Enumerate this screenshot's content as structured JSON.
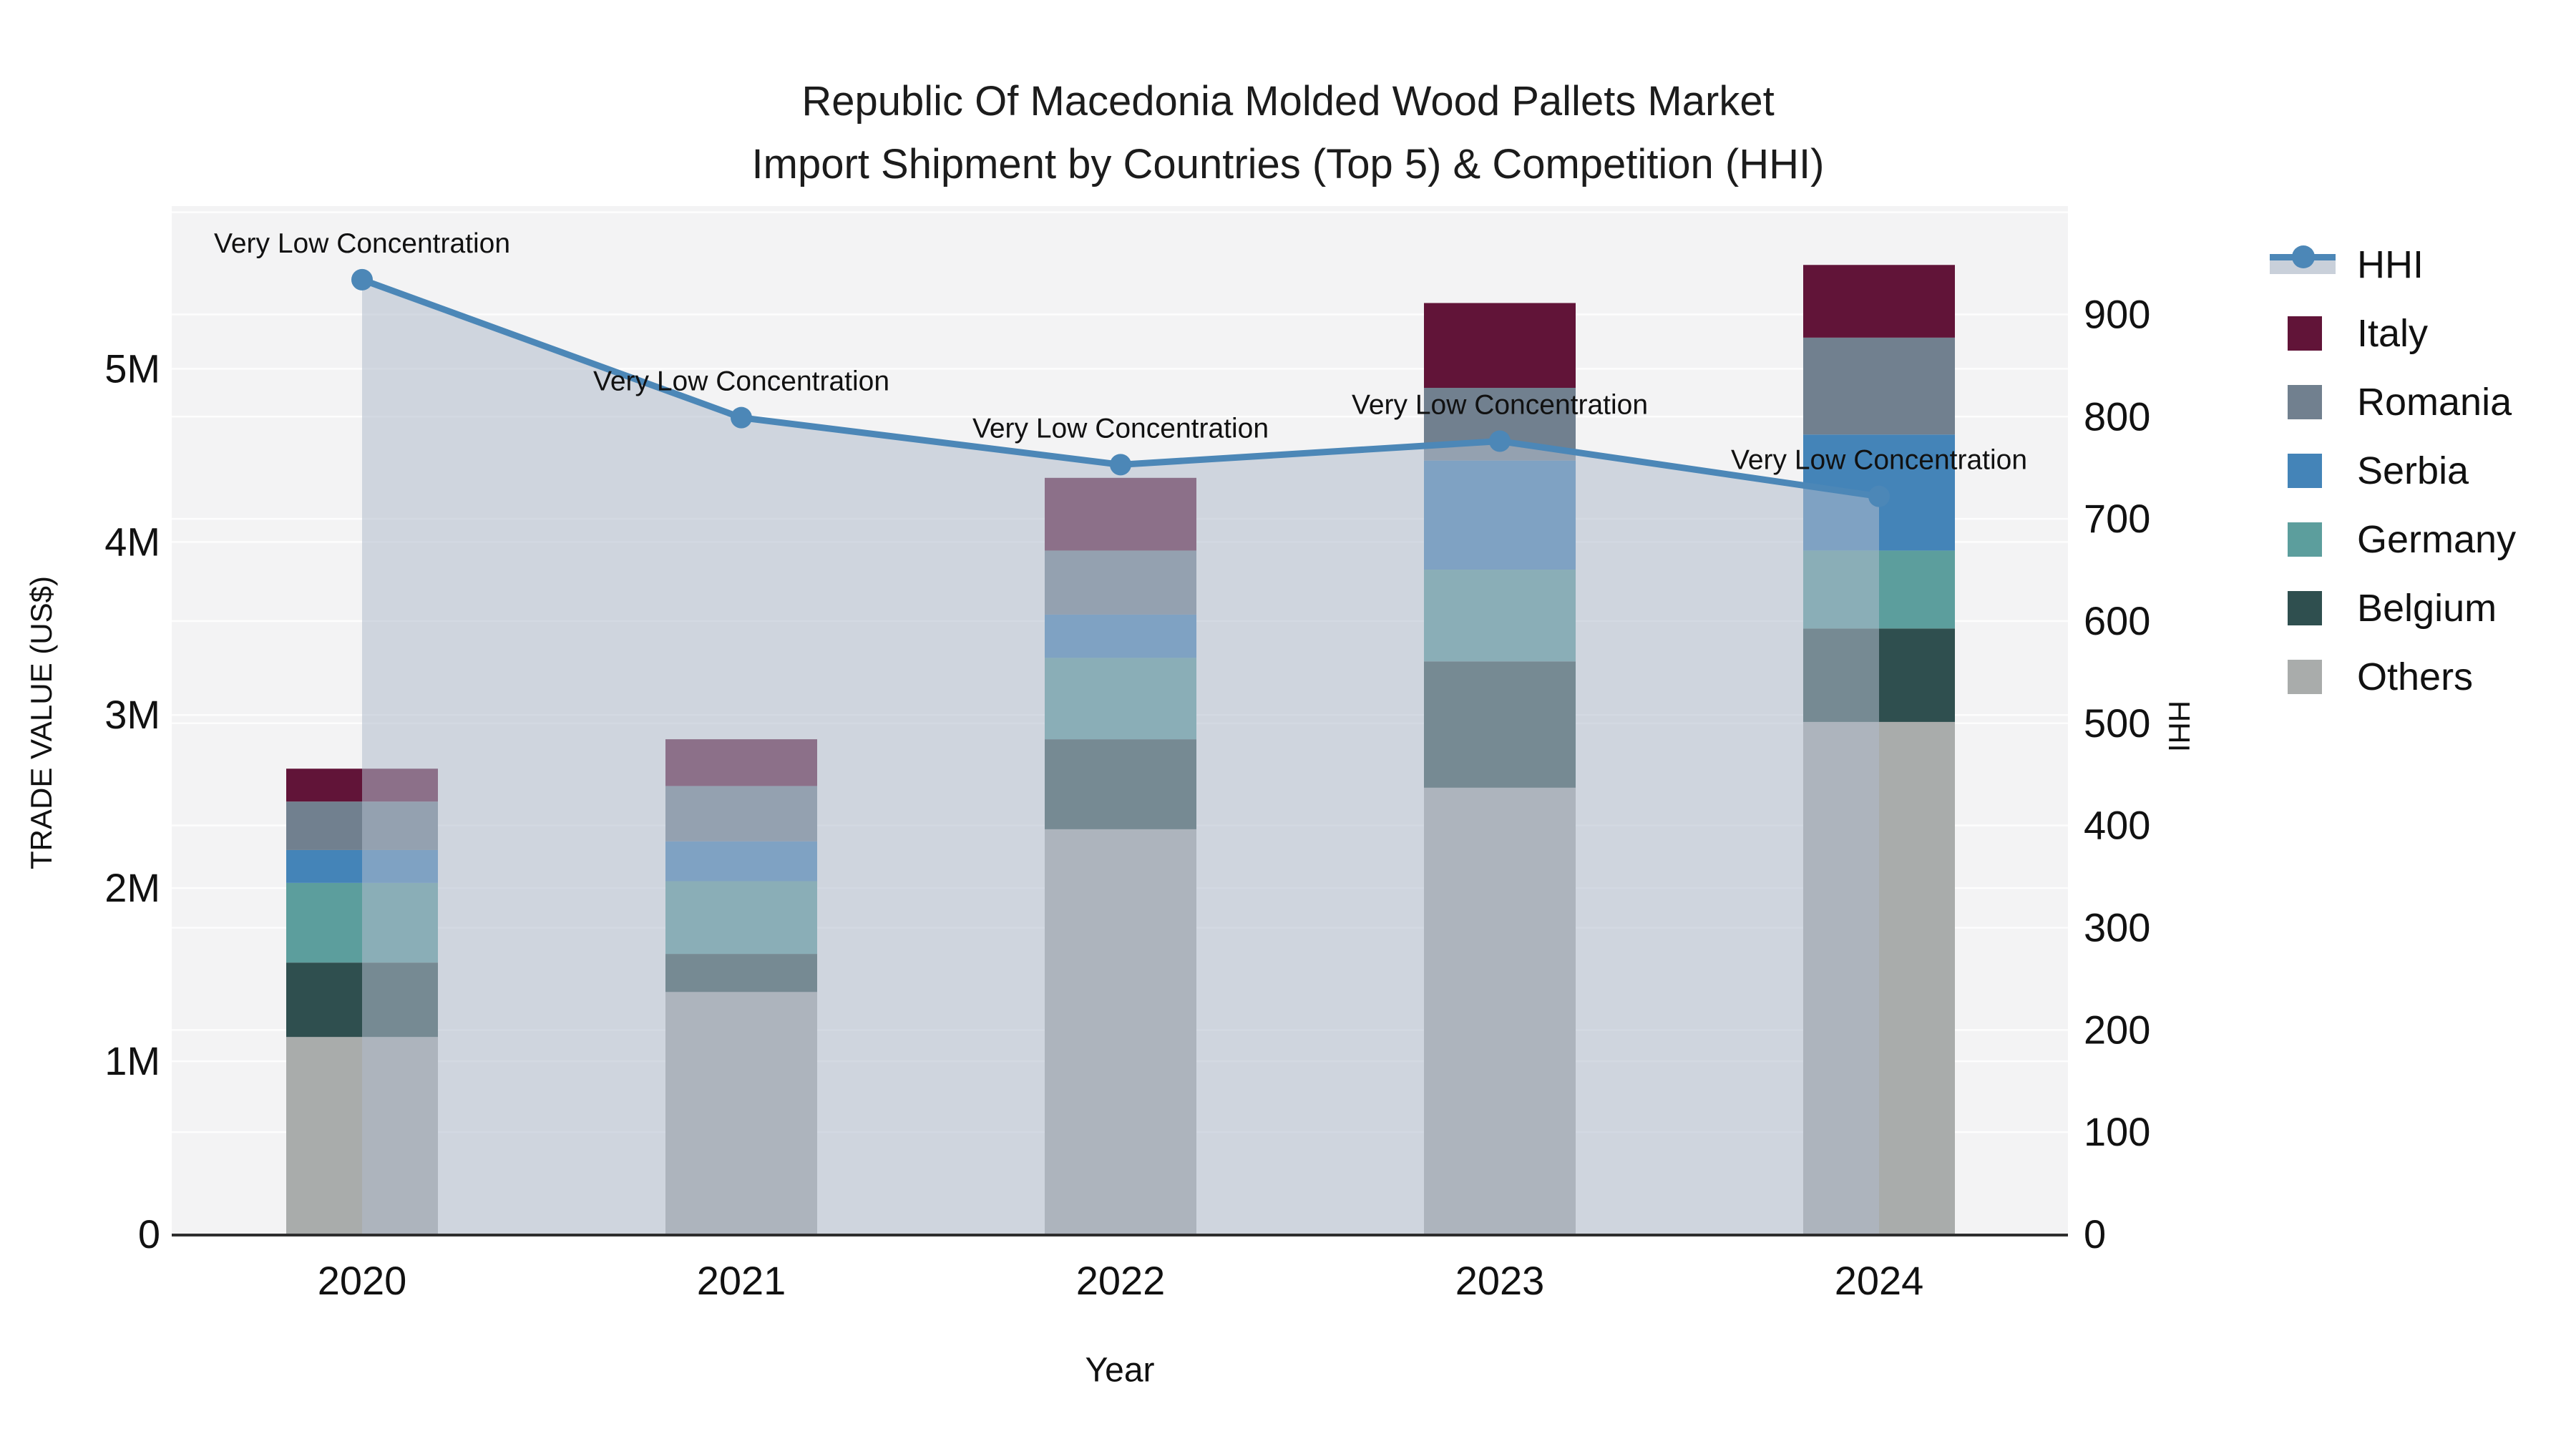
{
  "title": {
    "line1": "Republic Of Macedonia Molded Wood Pallets Market",
    "line2": "Import Shipment by Countries (Top 5) & Competition (HHI)"
  },
  "axes": {
    "x_title": "Year",
    "y_left_title": "TRADE VALUE (US$)",
    "y_right_title": "HHI",
    "y_left_ticks": [
      "0",
      "1M",
      "2M",
      "3M",
      "4M",
      "5M"
    ],
    "y_right_ticks": [
      "0",
      "100",
      "200",
      "300",
      "400",
      "500",
      "600",
      "700",
      "800",
      "900"
    ]
  },
  "legend": {
    "items": [
      {
        "label": "HHI",
        "kind": "line",
        "line_color": "#4c87b7",
        "band_color": "#c9d0da"
      },
      {
        "label": "Italy",
        "kind": "swatch",
        "color": "#611438"
      },
      {
        "label": "Romania",
        "kind": "swatch",
        "color": "#71808f"
      },
      {
        "label": "Serbia",
        "kind": "swatch",
        "color": "#4484b8"
      },
      {
        "label": "Germany",
        "kind": "swatch",
        "color": "#5c9e9d"
      },
      {
        "label": "Belgium",
        "kind": "swatch",
        "color": "#2f4f4f"
      },
      {
        "label": "Others",
        "kind": "swatch",
        "color": "#a9acab"
      }
    ]
  },
  "chart_data": {
    "type": "combo-stacked-bar-and-line-area",
    "categories": [
      "2020",
      "2021",
      "2022",
      "2023",
      "2024"
    ],
    "bar_value_unit": "US$",
    "series": [
      {
        "name": "Others",
        "color": "#a9acab",
        "values": [
          1140000,
          1400000,
          2340000,
          2580000,
          2960000
        ]
      },
      {
        "name": "Belgium",
        "color": "#2f4f4f",
        "values": [
          430000,
          220000,
          520000,
          730000,
          540000
        ]
      },
      {
        "name": "Germany",
        "color": "#5c9e9d",
        "values": [
          460000,
          420000,
          470000,
          530000,
          450000
        ]
      },
      {
        "name": "Serbia",
        "color": "#4484b8",
        "values": [
          190000,
          230000,
          250000,
          630000,
          670000
        ]
      },
      {
        "name": "Romania",
        "color": "#71808f",
        "values": [
          280000,
          320000,
          370000,
          420000,
          560000
        ]
      },
      {
        "name": "Italy",
        "color": "#611438",
        "values": [
          190000,
          270000,
          420000,
          490000,
          420000
        ]
      }
    ],
    "bar_totals": [
      2690000,
      2860000,
      4370000,
      5380000,
      5600000
    ],
    "line": {
      "name": "HHI",
      "axis": "right",
      "color": "#4c87b7",
      "area_fill": "rgba(176,188,204,0.55)",
      "values": [
        934,
        799,
        753,
        776,
        722
      ]
    },
    "annotations": [
      {
        "x": "2020",
        "text": "Very Low Concentration"
      },
      {
        "x": "2021",
        "text": "Very Low Concentration"
      },
      {
        "x": "2022",
        "text": "Very Low Concentration"
      },
      {
        "x": "2023",
        "text": "Very Low Concentration"
      },
      {
        "x": "2024",
        "text": "Very Low Concentration"
      }
    ],
    "y_left": {
      "label": "TRADE VALUE (US$)",
      "min": 0,
      "max": 5940000,
      "tick_step": 1000000
    },
    "y_right": {
      "label": "HHI",
      "min": 0,
      "max": 1006,
      "tick_step": 100
    },
    "grid": true,
    "legend_position": "right",
    "plot_background": "#f3f3f4",
    "gridline_color": "#ffffff"
  }
}
